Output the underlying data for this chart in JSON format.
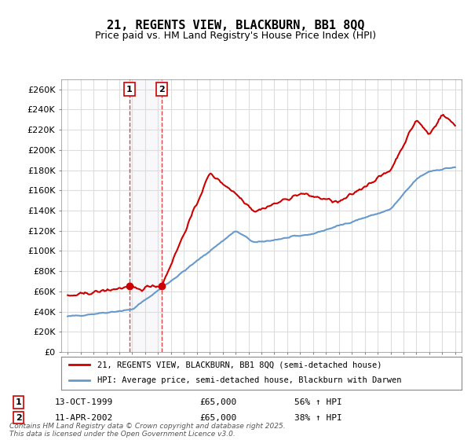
{
  "title_line1": "21, REGENTS VIEW, BLACKBURN, BB1 8QQ",
  "title_line2": "Price paid vs. HM Land Registry's House Price Index (HPI)",
  "legend_property": "21, REGENTS VIEW, BLACKBURN, BB1 8QQ (semi-detached house)",
  "legend_hpi": "HPI: Average price, semi-detached house, Blackburn with Darwen",
  "sale1_date": "13-OCT-1999",
  "sale1_price": 65000,
  "sale1_label": "56% ↑ HPI",
  "sale2_date": "11-APR-2002",
  "sale2_price": 65000,
  "sale2_label": "38% ↑ HPI",
  "ylabel_format": "£{0}K",
  "ylim": [
    0,
    270000
  ],
  "yticks": [
    0,
    20000,
    40000,
    60000,
    80000,
    100000,
    120000,
    140000,
    160000,
    180000,
    200000,
    220000,
    240000,
    260000
  ],
  "footer": "Contains HM Land Registry data © Crown copyright and database right 2025.\nThis data is licensed under the Open Government Licence v3.0.",
  "property_color": "#cc0000",
  "hpi_color": "#6699cc",
  "marker_color": "#cc0000",
  "sale1_box_color": "#cc0000",
  "sale2_box_color": "#cc0000",
  "background_color": "#ffffff",
  "grid_color": "#dddddd"
}
